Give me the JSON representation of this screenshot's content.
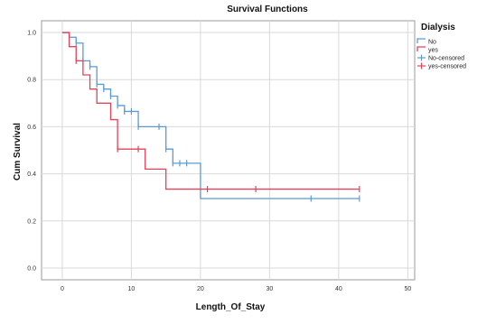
{
  "chart_data": {
    "type": "line",
    "subtype": "kaplan-meier step",
    "title": "Survival Functions",
    "xlabel": "Length_Of_Stay",
    "ylabel": "Cum Survival",
    "xlim": [
      -3,
      51
    ],
    "ylim": [
      -0.05,
      1.05
    ],
    "x_ticks": [
      0,
      10,
      20,
      30,
      40,
      50
    ],
    "y_ticks": [
      0.0,
      0.2,
      0.4,
      0.6,
      0.8,
      1.0
    ],
    "y_tick_labels": [
      "0.0",
      "0.2",
      "0.4",
      "0.6",
      "0.8",
      "1.0"
    ],
    "grid": true,
    "legend_title": "Dialysis",
    "legend_position": "top-right outside",
    "legend": [
      {
        "label": "No",
        "kind": "line",
        "color": "#5b9bd5"
      },
      {
        "label": "yes",
        "kind": "line",
        "color": "#e0445c"
      },
      {
        "label": "No-censored",
        "kind": "censor",
        "color": "#5b9bd5"
      },
      {
        "label": "yes-censored",
        "kind": "censor",
        "color": "#e0445c"
      }
    ],
    "series": [
      {
        "name": "No",
        "color": "#5b9bd5",
        "steps": [
          [
            0,
            1.0
          ],
          [
            1,
            0.98
          ],
          [
            2,
            0.955
          ],
          [
            3,
            0.88
          ],
          [
            4,
            0.855
          ],
          [
            5,
            0.78
          ],
          [
            6,
            0.76
          ],
          [
            7,
            0.73
          ],
          [
            8,
            0.69
          ],
          [
            9,
            0.665
          ],
          [
            11,
            0.6
          ],
          [
            15,
            0.505
          ],
          [
            16,
            0.445
          ],
          [
            20,
            0.295
          ],
          [
            43,
            0.295
          ]
        ],
        "censored": [
          [
            2,
            0.955
          ],
          [
            3,
            0.88
          ],
          [
            4,
            0.855
          ],
          [
            5,
            0.78
          ],
          [
            6,
            0.76
          ],
          [
            7,
            0.73
          ],
          [
            8,
            0.69
          ],
          [
            9,
            0.665
          ],
          [
            10,
            0.665
          ],
          [
            11,
            0.6
          ],
          [
            14,
            0.6
          ],
          [
            15,
            0.505
          ],
          [
            16,
            0.445
          ],
          [
            17,
            0.445
          ],
          [
            18,
            0.445
          ],
          [
            36,
            0.295
          ],
          [
            43,
            0.295
          ]
        ]
      },
      {
        "name": "yes",
        "color": "#e0445c",
        "steps": [
          [
            0,
            1.0
          ],
          [
            1,
            0.94
          ],
          [
            2,
            0.88
          ],
          [
            3,
            0.82
          ],
          [
            4,
            0.76
          ],
          [
            5,
            0.7
          ],
          [
            7,
            0.63
          ],
          [
            8,
            0.505
          ],
          [
            12,
            0.42
          ],
          [
            15,
            0.335
          ],
          [
            43,
            0.335
          ]
        ],
        "censored": [
          [
            2,
            0.88
          ],
          [
            8,
            0.505
          ],
          [
            11,
            0.505
          ],
          [
            21,
            0.335
          ],
          [
            28,
            0.335
          ],
          [
            43,
            0.335
          ]
        ]
      }
    ]
  }
}
